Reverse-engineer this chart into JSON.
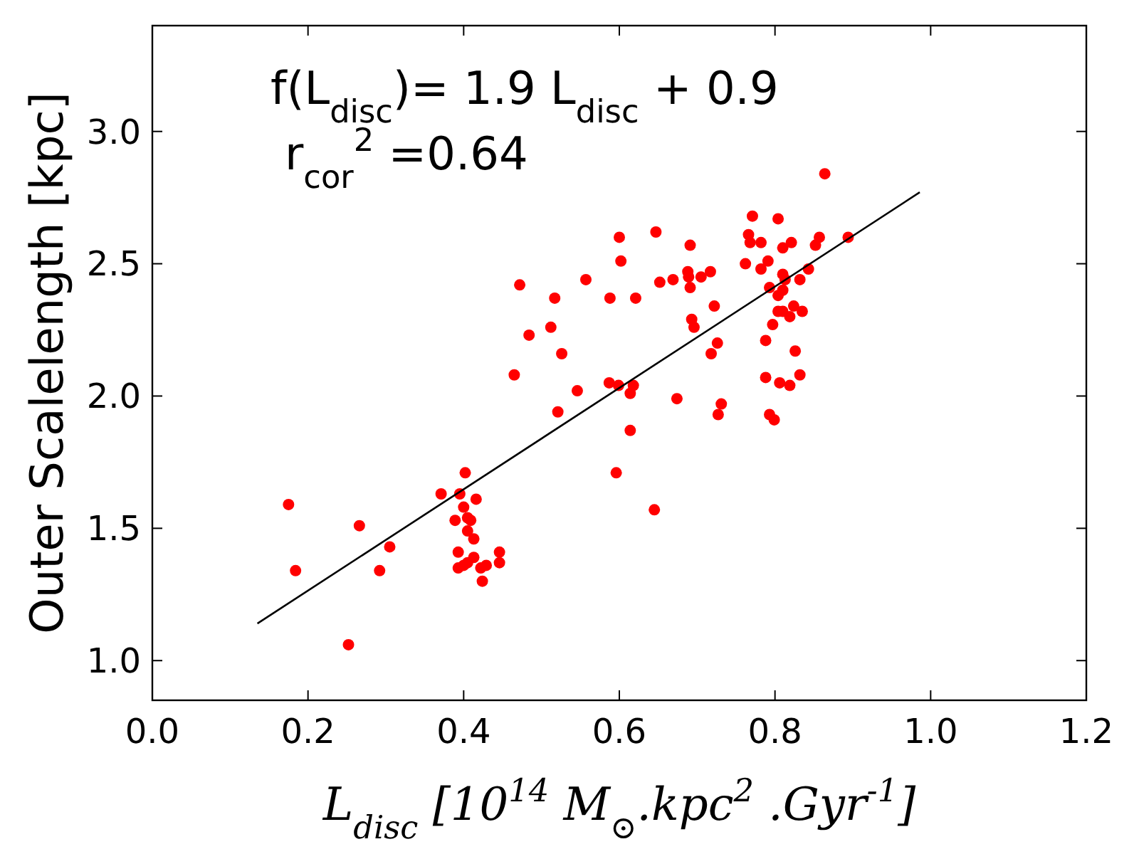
{
  "chart_data": {
    "type": "scatter",
    "xlabel": "L$_{disc}$ [10$^{14}$ M$_{⊙}$.kpc$^{2}$ .Gyr$^{-1}$]",
    "ylabel": "Outer Scalelength [kpc]",
    "annotations": [
      "f(L$_{disc}$)= 1.9 L$_{disc}$ + 0.9",
      "r$_{cor}$$^{2}$ =0.64"
    ],
    "xlim": [
      0,
      1.2
    ],
    "ylim": [
      0.85,
      3.4
    ],
    "xticks": [
      {
        "value": 0,
        "label": "0.0"
      },
      0.2,
      0.4,
      0.6,
      0.8,
      {
        "value": 1,
        "label": "1.0"
      },
      1.2
    ],
    "yticks": [
      {
        "value": 1,
        "label": "1.0"
      },
      1.5,
      {
        "value": 2,
        "label": "2.0"
      },
      2.5,
      {
        "value": 3,
        "label": "3.0"
      }
    ],
    "grid": false,
    "series": [
      {
        "marker": "circle",
        "color": "#ff0000",
        "x": [
          0.175,
          0.184,
          0.252,
          0.266,
          0.292,
          0.305,
          0.371,
          0.395,
          0.402,
          0.416,
          0.4,
          0.389,
          0.405,
          0.409,
          0.405,
          0.413,
          0.393,
          0.413,
          0.405,
          0.4,
          0.393,
          0.422,
          0.429,
          0.424,
          0.446,
          0.446,
          0.596,
          0.614,
          0.645,
          0.6,
          0.602,
          0.472,
          0.557,
          0.517,
          0.588,
          0.621,
          0.512,
          0.484,
          0.526,
          0.465,
          0.546,
          0.587,
          0.599,
          0.618,
          0.614,
          0.521,
          0.647,
          0.691,
          0.652,
          0.669,
          0.688,
          0.689,
          0.691,
          0.705,
          0.717,
          0.722,
          0.693,
          0.696,
          0.726,
          0.718,
          0.674,
          0.731,
          0.727,
          0.771,
          0.804,
          0.766,
          0.768,
          0.782,
          0.81,
          0.821,
          0.762,
          0.791,
          0.782,
          0.81,
          0.813,
          0.793,
          0.804,
          0.81,
          0.832,
          0.843,
          0.852,
          0.857,
          0.894,
          0.804,
          0.81,
          0.819,
          0.824,
          0.835,
          0.797,
          0.788,
          0.826,
          0.788,
          0.806,
          0.819,
          0.832,
          0.793,
          0.799,
          0.864
        ],
        "values": [
          1.59,
          1.34,
          1.06,
          1.51,
          1.34,
          1.43,
          1.63,
          1.63,
          1.71,
          1.61,
          1.58,
          1.53,
          1.54,
          1.53,
          1.49,
          1.46,
          1.41,
          1.39,
          1.37,
          1.36,
          1.35,
          1.35,
          1.36,
          1.3,
          1.41,
          1.37,
          1.71,
          1.87,
          1.57,
          2.6,
          2.51,
          2.42,
          2.44,
          2.37,
          2.37,
          2.37,
          2.26,
          2.23,
          2.16,
          2.08,
          2.02,
          2.05,
          2.04,
          2.04,
          2.01,
          1.94,
          2.62,
          2.57,
          2.43,
          2.44,
          2.47,
          2.45,
          2.41,
          2.45,
          2.47,
          2.34,
          2.29,
          2.26,
          2.2,
          2.16,
          1.99,
          1.97,
          1.93,
          2.68,
          2.67,
          2.61,
          2.58,
          2.58,
          2.56,
          2.58,
          2.5,
          2.51,
          2.48,
          2.46,
          2.44,
          2.41,
          2.38,
          2.4,
          2.44,
          2.48,
          2.57,
          2.6,
          2.6,
          2.32,
          2.32,
          2.3,
          2.34,
          2.32,
          2.27,
          2.21,
          2.17,
          2.07,
          2.05,
          2.04,
          2.08,
          1.93,
          1.91,
          2.84
        ]
      },
      {
        "type": "line",
        "color": "#000000",
        "x": [
          0.135,
          0.986
        ],
        "values": [
          1.14,
          2.77
        ]
      }
    ]
  }
}
